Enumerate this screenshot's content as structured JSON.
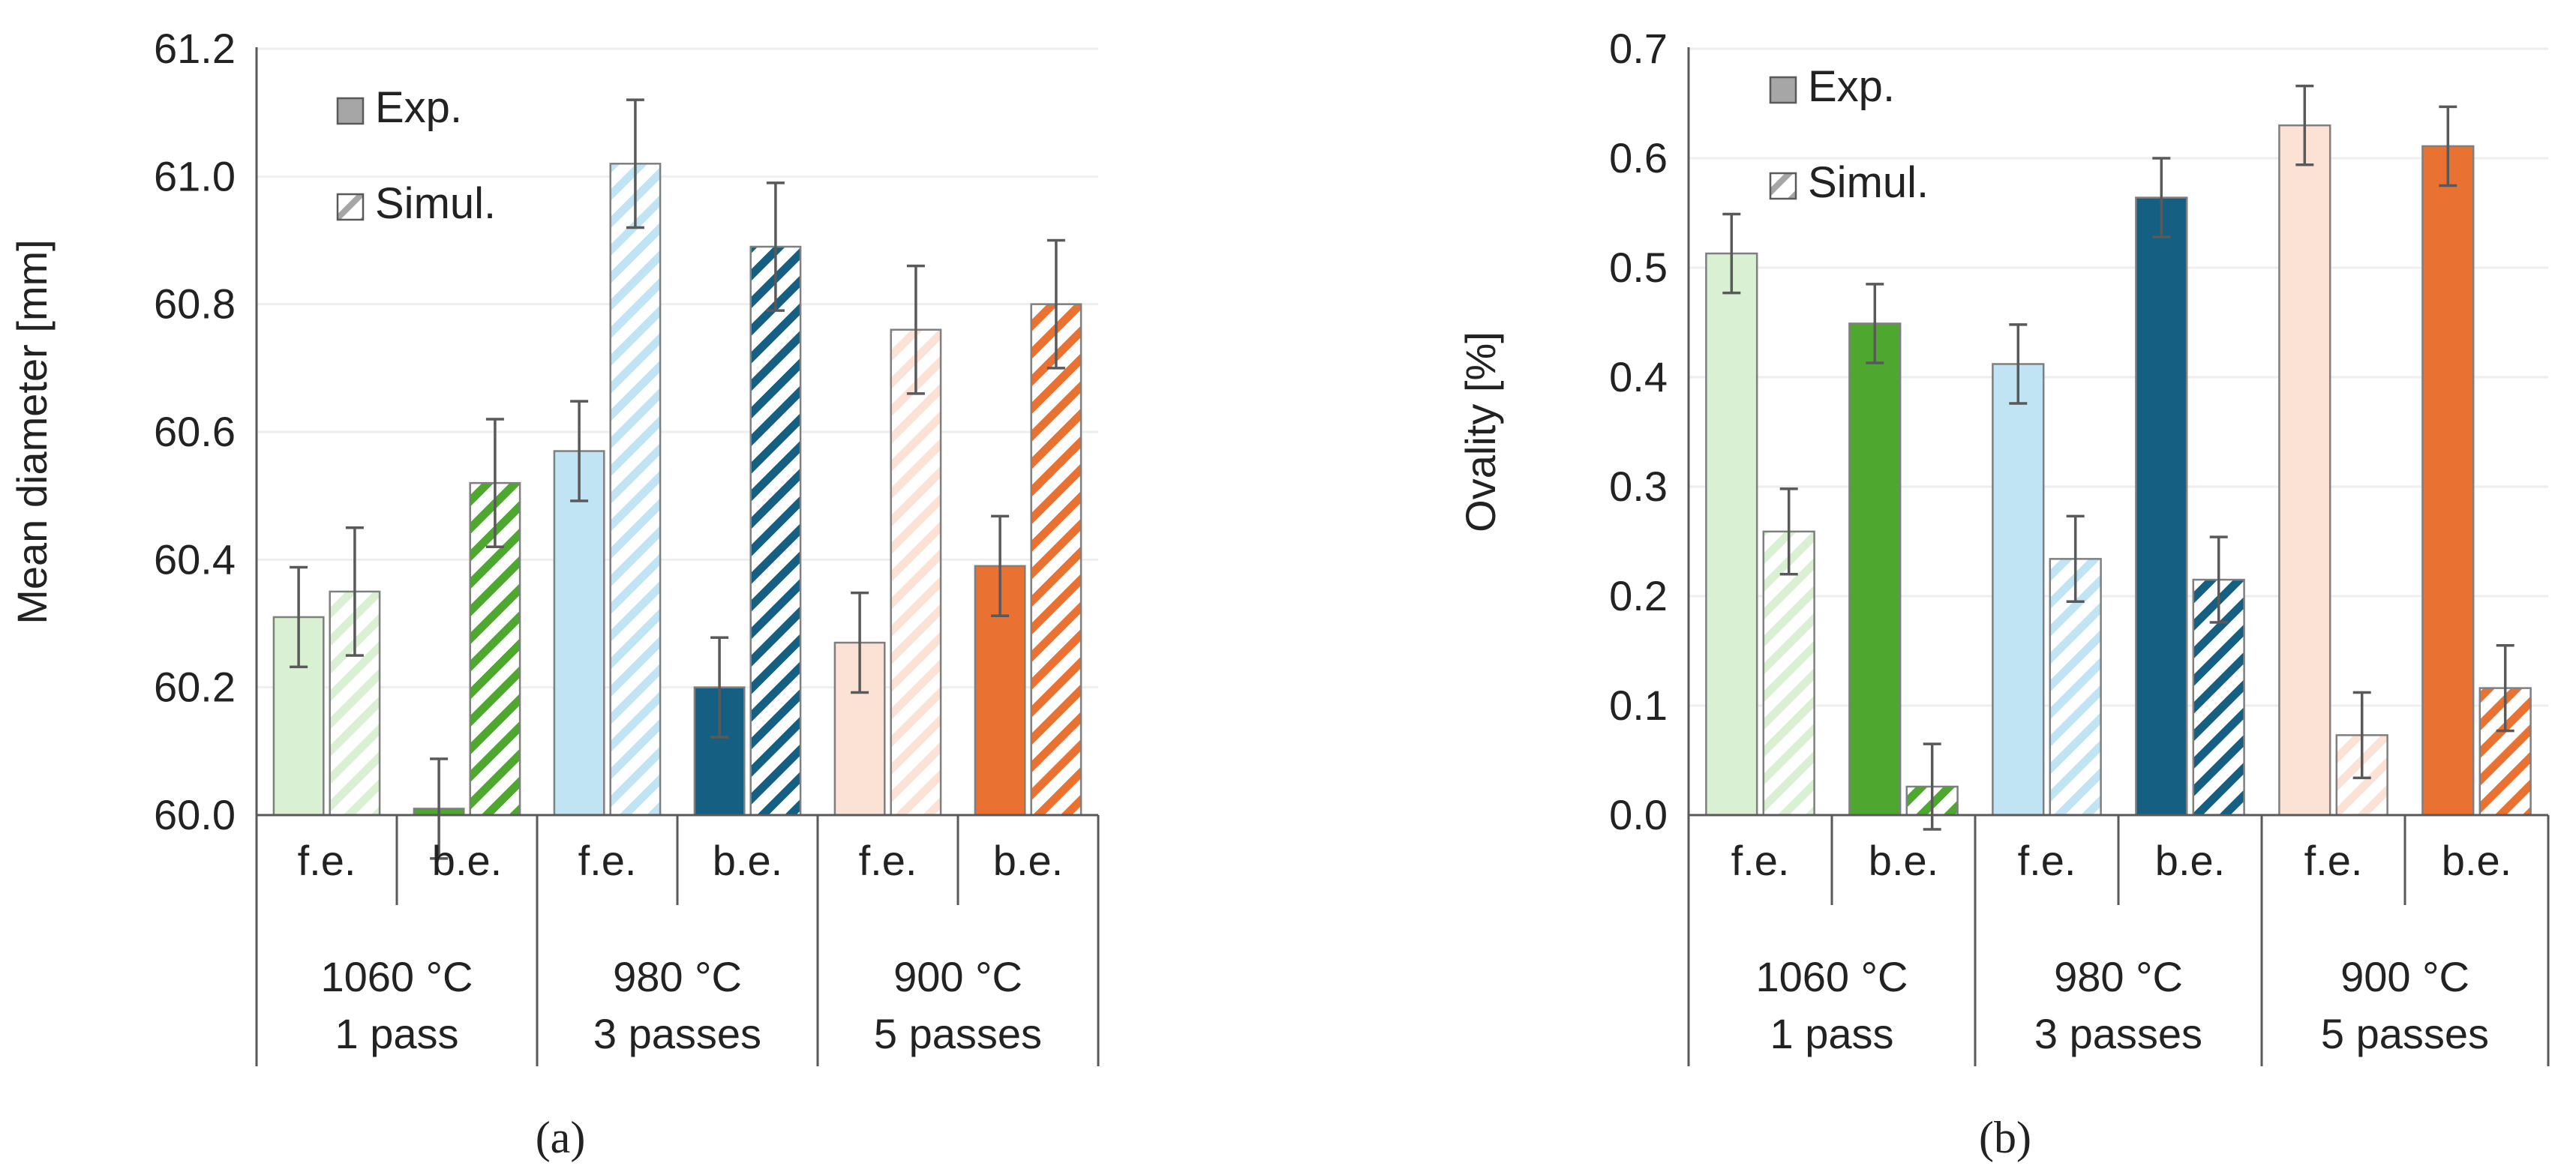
{
  "chart_data": [
    {
      "type": "bar",
      "panel_label": "(a)",
      "ylabel": "Mean diameter [mm]",
      "ylim": [
        60.0,
        61.2
      ],
      "yticks": [
        "60.0",
        "60.2",
        "60.4",
        "60.6",
        "60.8",
        "61.0",
        "61.2"
      ],
      "grid": true,
      "legend_position": "top-left",
      "legend": [
        "Exp.",
        "Simul."
      ],
      "x_level1": [
        "f.e.",
        "b.e.",
        "f.e.",
        "b.e.",
        "f.e.",
        "b.e."
      ],
      "x_level2": [
        {
          "line1": "1060 °C",
          "line2": "1 pass"
        },
        {
          "line1": "980 °C",
          "line2": "3 passes"
        },
        {
          "line1": "900 °C",
          "line2": "5 passes"
        }
      ],
      "series": [
        {
          "name": "Exp.",
          "values": [
            60.31,
            60.01,
            60.57,
            60.2,
            60.27,
            60.39
          ],
          "errors": [
            0.078,
            0.078,
            0.078,
            0.078,
            0.078,
            0.078
          ]
        },
        {
          "name": "Simul.",
          "values": [
            60.35,
            60.52,
            61.02,
            60.89,
            60.76,
            60.8
          ],
          "errors": [
            0.1,
            0.1,
            0.1,
            0.1,
            0.1,
            0.1
          ]
        }
      ]
    },
    {
      "type": "bar",
      "panel_label": "(b)",
      "ylabel": "Ovality [%]",
      "ylim": [
        0.0,
        0.7
      ],
      "yticks": [
        "0.0",
        "0.1",
        "0.2",
        "0.3",
        "0.4",
        "0.5",
        "0.6",
        "0.7"
      ],
      "grid": true,
      "legend_position": "top-left",
      "legend": [
        "Exp.",
        "Simul."
      ],
      "x_level1": [
        "f.e.",
        "b.e.",
        "f.e.",
        "b.e.",
        "f.e.",
        "b.e."
      ],
      "x_level2": [
        {
          "line1": "1060 °C",
          "line2": "1 pass"
        },
        {
          "line1": "980 °C",
          "line2": "3 passes"
        },
        {
          "line1": "900 °C",
          "line2": "5 passes"
        }
      ],
      "series": [
        {
          "name": "Exp.",
          "values": [
            0.513,
            0.449,
            0.412,
            0.564,
            0.63,
            0.611
          ],
          "errors": [
            0.036,
            0.036,
            0.036,
            0.036,
            0.036,
            0.036
          ]
        },
        {
          "name": "Simul.",
          "values": [
            0.259,
            0.026,
            0.234,
            0.215,
            0.073,
            0.116
          ],
          "errors": [
            0.039,
            0.039,
            0.039,
            0.039,
            0.039,
            0.039
          ]
        }
      ]
    }
  ],
  "colors": {
    "fe_1060": "#d9f0d3",
    "be_1060": "#4ea72e",
    "fe_980": "#c1e4f5",
    "be_980": "#156082",
    "fe_900": "#fbe2d5",
    "be_900": "#e97132",
    "bar_outline": "#7f7f7f",
    "error_bar": "#595959",
    "gridline": "#eeeeee",
    "legend_swatch": "#a6a6a6"
  }
}
